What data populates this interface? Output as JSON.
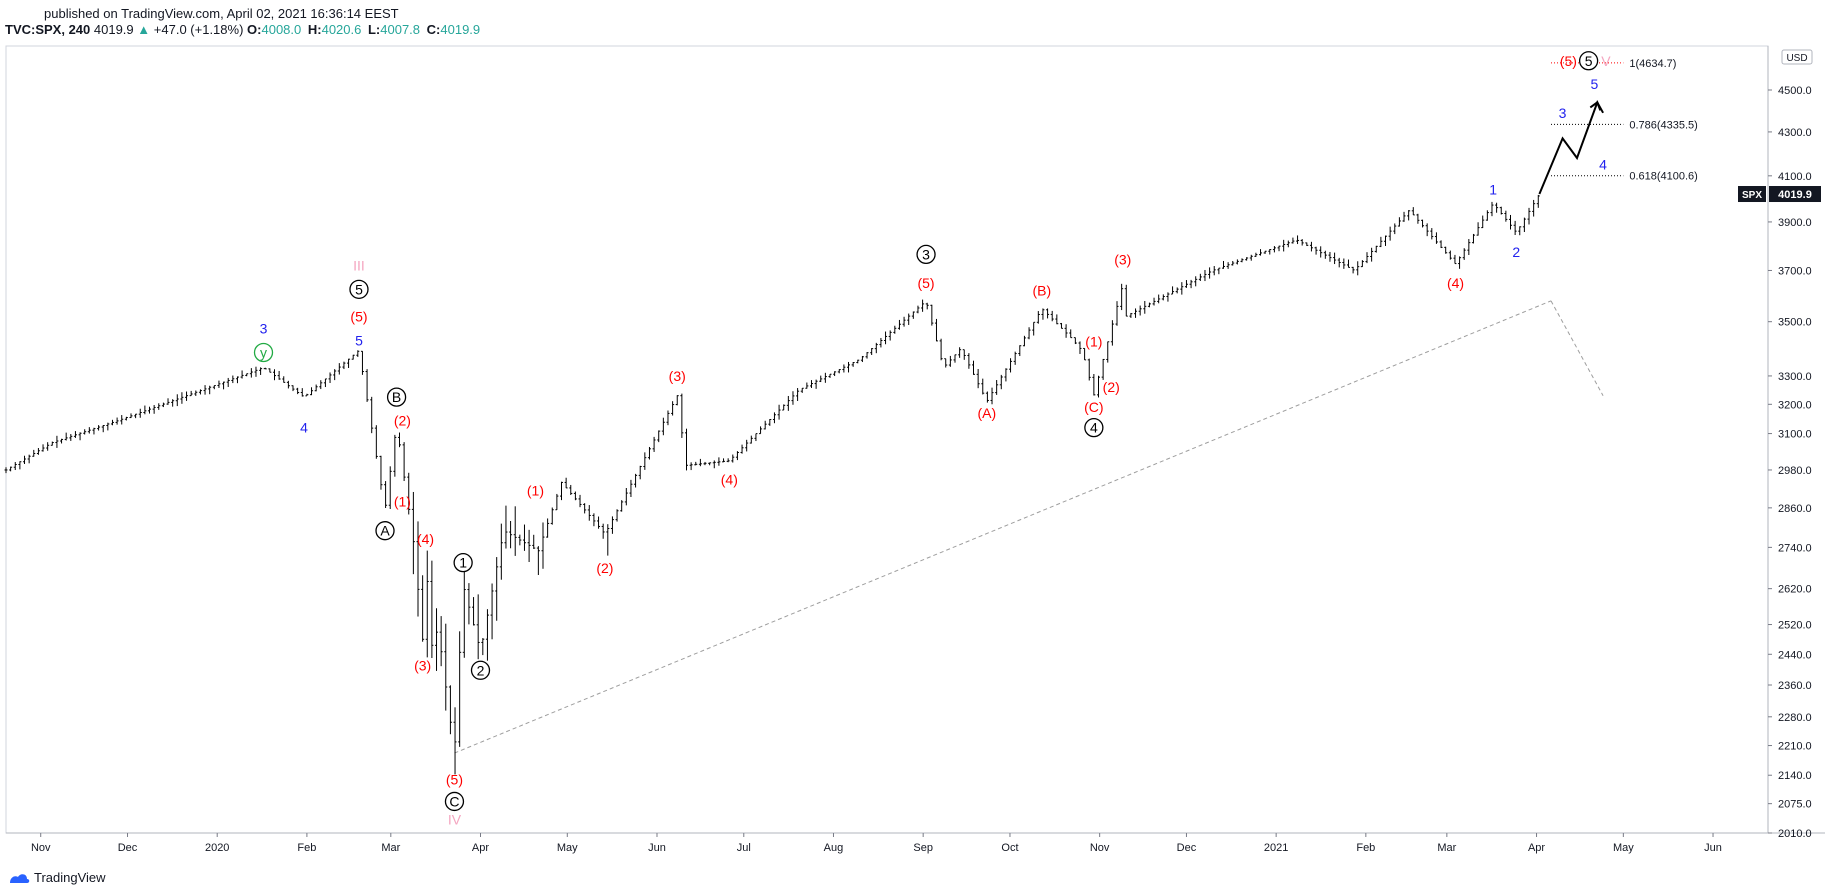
{
  "header": {
    "published": "published on TradingView.com, April 02, 2021 16:36:14 EEST",
    "symbol": "TVC:SPX, 240",
    "last": "4019.9",
    "change": "+47.0 (+1.18%)",
    "o_label": "O:",
    "o_value": "4008.0",
    "h_label": "H:",
    "h_value": "4020.6",
    "l_label": "L:",
    "l_value": "4007.8",
    "c_label": "C:",
    "c_value": "4019.9"
  },
  "footer": {
    "brand": "TradingView"
  },
  "colors": {
    "red": "#ff0000",
    "blue": "#2222ee",
    "pink": "#f4a6c0",
    "green": "#22aa44",
    "black": "#000000",
    "accent_up": "#26a69a"
  },
  "chart_data": {
    "type": "candlestick",
    "title": "TVC:SPX, 240",
    "currency": "USD",
    "price_tag": {
      "label": "SPX",
      "value": "4019.9"
    },
    "yscale": "log",
    "ylim": [
      2010,
      4720
    ],
    "xlim": [
      "2019-10-20",
      "2021-06-20"
    ],
    "y_ticks": [
      "4500.0",
      "4300.0",
      "4100.0",
      "3900.0",
      "3700.0",
      "3500.0",
      "3300.0",
      "3200.0",
      "3100.0",
      "2980.0",
      "2860.0",
      "2740.0",
      "2620.0",
      "2520.0",
      "2440.0",
      "2360.0",
      "2280.0",
      "2210.0",
      "2140.0",
      "2075.0",
      "2010.0"
    ],
    "x_ticks": [
      {
        "date": "2019-11-01",
        "label": "Nov"
      },
      {
        "date": "2019-12-01",
        "label": "Dec"
      },
      {
        "date": "2020-01-01",
        "label": "2020"
      },
      {
        "date": "2020-02-01",
        "label": "Feb"
      },
      {
        "date": "2020-03-01",
        "label": "Mar"
      },
      {
        "date": "2020-04-01",
        "label": "Apr"
      },
      {
        "date": "2020-05-01",
        "label": "May"
      },
      {
        "date": "2020-06-01",
        "label": "Jun"
      },
      {
        "date": "2020-07-01",
        "label": "Jul"
      },
      {
        "date": "2020-08-01",
        "label": "Aug"
      },
      {
        "date": "2020-09-01",
        "label": "Sep"
      },
      {
        "date": "2020-10-01",
        "label": "Oct"
      },
      {
        "date": "2020-11-01",
        "label": "Nov"
      },
      {
        "date": "2020-12-01",
        "label": "Dec"
      },
      {
        "date": "2021-01-01",
        "label": "2021"
      },
      {
        "date": "2021-02-01",
        "label": "Feb"
      },
      {
        "date": "2021-03-01",
        "label": "Mar"
      },
      {
        "date": "2021-04-01",
        "label": "Apr"
      },
      {
        "date": "2021-05-01",
        "label": "May"
      },
      {
        "date": "2021-06-01",
        "label": "Jun"
      }
    ],
    "price_path": [
      [
        "2019-10-20",
        2980
      ],
      [
        "2019-11-05",
        3070
      ],
      [
        "2019-11-28",
        3145
      ],
      [
        "2019-12-20",
        3225
      ],
      [
        "2020-01-17",
        3330
      ],
      [
        "2020-01-31",
        3225
      ],
      [
        "2020-02-19",
        3393
      ],
      [
        "2020-02-28",
        2855
      ],
      [
        "2020-03-03",
        3130
      ],
      [
        "2020-03-09",
        2745
      ],
      [
        "2020-03-12",
        2480
      ],
      [
        "2020-03-13",
        2710
      ],
      [
        "2020-03-16",
        2380
      ],
      [
        "2020-03-17",
        2530
      ],
      [
        "2020-03-23",
        2192
      ],
      [
        "2020-03-26",
        2630
      ],
      [
        "2020-04-01",
        2448
      ],
      [
        "2020-04-09",
        2790
      ],
      [
        "2020-04-21",
        2730
      ],
      [
        "2020-04-29",
        2940
      ],
      [
        "2020-05-14",
        2780
      ],
      [
        "2020-06-08",
        3230
      ],
      [
        "2020-06-11",
        2995
      ],
      [
        "2020-06-26",
        3010
      ],
      [
        "2020-07-20",
        3250
      ],
      [
        "2020-08-10",
        3360
      ],
      [
        "2020-09-02",
        3580
      ],
      [
        "2020-09-08",
        3330
      ],
      [
        "2020-09-14",
        3400
      ],
      [
        "2020-09-23",
        3210
      ],
      [
        "2020-10-12",
        3550
      ],
      [
        "2020-10-22",
        3440
      ],
      [
        "2020-10-26",
        3390
      ],
      [
        "2020-10-30",
        3233
      ],
      [
        "2020-11-09",
        3645
      ],
      [
        "2020-11-10",
        3520
      ],
      [
        "2020-12-10",
        3700
      ],
      [
        "2021-01-08",
        3825
      ],
      [
        "2021-01-28",
        3700
      ],
      [
        "2021-02-16",
        3950
      ],
      [
        "2021-03-04",
        3725
      ],
      [
        "2021-03-17",
        3980
      ],
      [
        "2021-03-25",
        3855
      ],
      [
        "2021-04-02",
        4019.9
      ]
    ],
    "projection": [
      [
        "2021-04-02",
        4019.9
      ],
      [
        "2021-04-10",
        4270
      ],
      [
        "2021-04-15",
        4180
      ],
      [
        "2021-04-22",
        4440
      ],
      [
        "2021-04-24",
        4390
      ]
    ],
    "trendline": [
      [
        "2020-03-23",
        2192
      ],
      [
        "2021-04-06",
        3580
      ]
    ],
    "trendline_ext": [
      [
        "2021-04-06",
        3580
      ],
      [
        "2021-04-24",
        3230
      ]
    ],
    "fib_levels": [
      {
        "label": "1(4634.7)",
        "value": 4634.7,
        "color": "#ff0000"
      },
      {
        "label": "0.786(4335.5)",
        "value": 4335.5,
        "color": "#000000"
      },
      {
        "label": "0.618(4100.6)",
        "value": 4100.6,
        "color": "#000000"
      }
    ],
    "annotations": [
      {
        "text": "3",
        "color": "blue",
        "date": "2020-01-17",
        "price": 3475,
        "circle": false
      },
      {
        "text": "y",
        "color": "green",
        "date": "2020-01-17",
        "price": 3385,
        "circle": true
      },
      {
        "text": "4",
        "color": "blue",
        "date": "2020-01-31",
        "price": 3120,
        "circle": false
      },
      {
        "text": "III",
        "color": "pink",
        "date": "2020-02-19",
        "price": 3720,
        "circle": false
      },
      {
        "text": "5",
        "color": "black",
        "date": "2020-02-19",
        "price": 3625,
        "circle": true
      },
      {
        "text": "(5)",
        "color": "red",
        "date": "2020-02-19",
        "price": 3520,
        "circle": false
      },
      {
        "text": "5",
        "color": "blue",
        "date": "2020-02-19",
        "price": 3430,
        "circle": false
      },
      {
        "text": "B",
        "color": "black",
        "date": "2020-03-03",
        "price": 3225,
        "circle": true
      },
      {
        "text": "(2)",
        "color": "red",
        "date": "2020-03-05",
        "price": 3145,
        "circle": false
      },
      {
        "text": "(1)",
        "color": "red",
        "date": "2020-03-05",
        "price": 2880,
        "circle": false
      },
      {
        "text": "A",
        "color": "black",
        "date": "2020-02-28",
        "price": 2790,
        "circle": true
      },
      {
        "text": "(4)",
        "color": "red",
        "date": "2020-03-13",
        "price": 2765,
        "circle": false
      },
      {
        "text": "1",
        "color": "black",
        "date": "2020-03-26",
        "price": 2695,
        "circle": true
      },
      {
        "text": "(3)",
        "color": "red",
        "date": "2020-03-12",
        "price": 2410,
        "circle": false
      },
      {
        "text": "2",
        "color": "black",
        "date": "2020-04-01",
        "price": 2398,
        "circle": true
      },
      {
        "text": "(5)",
        "color": "red",
        "date": "2020-03-23",
        "price": 2130,
        "circle": false
      },
      {
        "text": "C",
        "color": "black",
        "date": "2020-03-23",
        "price": 2080,
        "circle": true
      },
      {
        "text": "IV",
        "color": "pink",
        "date": "2020-03-23",
        "price": 2040,
        "circle": false
      },
      {
        "text": "(1)",
        "color": "red",
        "date": "2020-04-20",
        "price": 2915,
        "circle": false
      },
      {
        "text": "(2)",
        "color": "red",
        "date": "2020-05-14",
        "price": 2680,
        "circle": false
      },
      {
        "text": "(3)",
        "color": "red",
        "date": "2020-06-08",
        "price": 3300,
        "circle": false
      },
      {
        "text": "(4)",
        "color": "red",
        "date": "2020-06-26",
        "price": 2950,
        "circle": false
      },
      {
        "text": "3",
        "color": "black",
        "date": "2020-09-02",
        "price": 3765,
        "circle": true
      },
      {
        "text": "(5)",
        "color": "red",
        "date": "2020-09-02",
        "price": 3650,
        "circle": false
      },
      {
        "text": "(A)",
        "color": "red",
        "date": "2020-09-23",
        "price": 3170,
        "circle": false
      },
      {
        "text": "(B)",
        "color": "red",
        "date": "2020-10-12",
        "price": 3620,
        "circle": false
      },
      {
        "text": "(1)",
        "color": "red",
        "date": "2020-10-30",
        "price": 3425,
        "circle": false
      },
      {
        "text": "(2)",
        "color": "red",
        "date": "2020-11-05",
        "price": 3260,
        "circle": false
      },
      {
        "text": "(C)",
        "color": "red",
        "date": "2020-10-30",
        "price": 3190,
        "circle": false
      },
      {
        "text": "4",
        "color": "black",
        "date": "2020-10-30",
        "price": 3120,
        "circle": true
      },
      {
        "text": "(3)",
        "color": "red",
        "date": "2020-11-09",
        "price": 3745,
        "circle": false
      },
      {
        "text": "1",
        "color": "blue",
        "date": "2021-03-17",
        "price": 4040,
        "circle": false
      },
      {
        "text": "2",
        "color": "blue",
        "date": "2021-03-25",
        "price": 3775,
        "circle": false
      },
      {
        "text": "(4)",
        "color": "red",
        "date": "2021-03-04",
        "price": 3650,
        "circle": false
      },
      {
        "text": "3",
        "color": "blue",
        "date": "2021-04-10",
        "price": 4390,
        "circle": false
      },
      {
        "text": "4",
        "color": "blue",
        "date": "2021-04-24",
        "price": 4150,
        "circle": false
      },
      {
        "text": "(5)",
        "color": "red",
        "date": "2021-04-12",
        "price": 4645,
        "circle": false
      },
      {
        "text": "5",
        "color": "black",
        "date": "2021-04-19",
        "price": 4645,
        "circle": true
      },
      {
        "text": "V",
        "color": "pink",
        "date": "2021-04-25",
        "price": 4645,
        "circle": false
      },
      {
        "text": "5",
        "color": "blue",
        "date": "2021-04-21",
        "price": 4530,
        "circle": false
      }
    ]
  }
}
